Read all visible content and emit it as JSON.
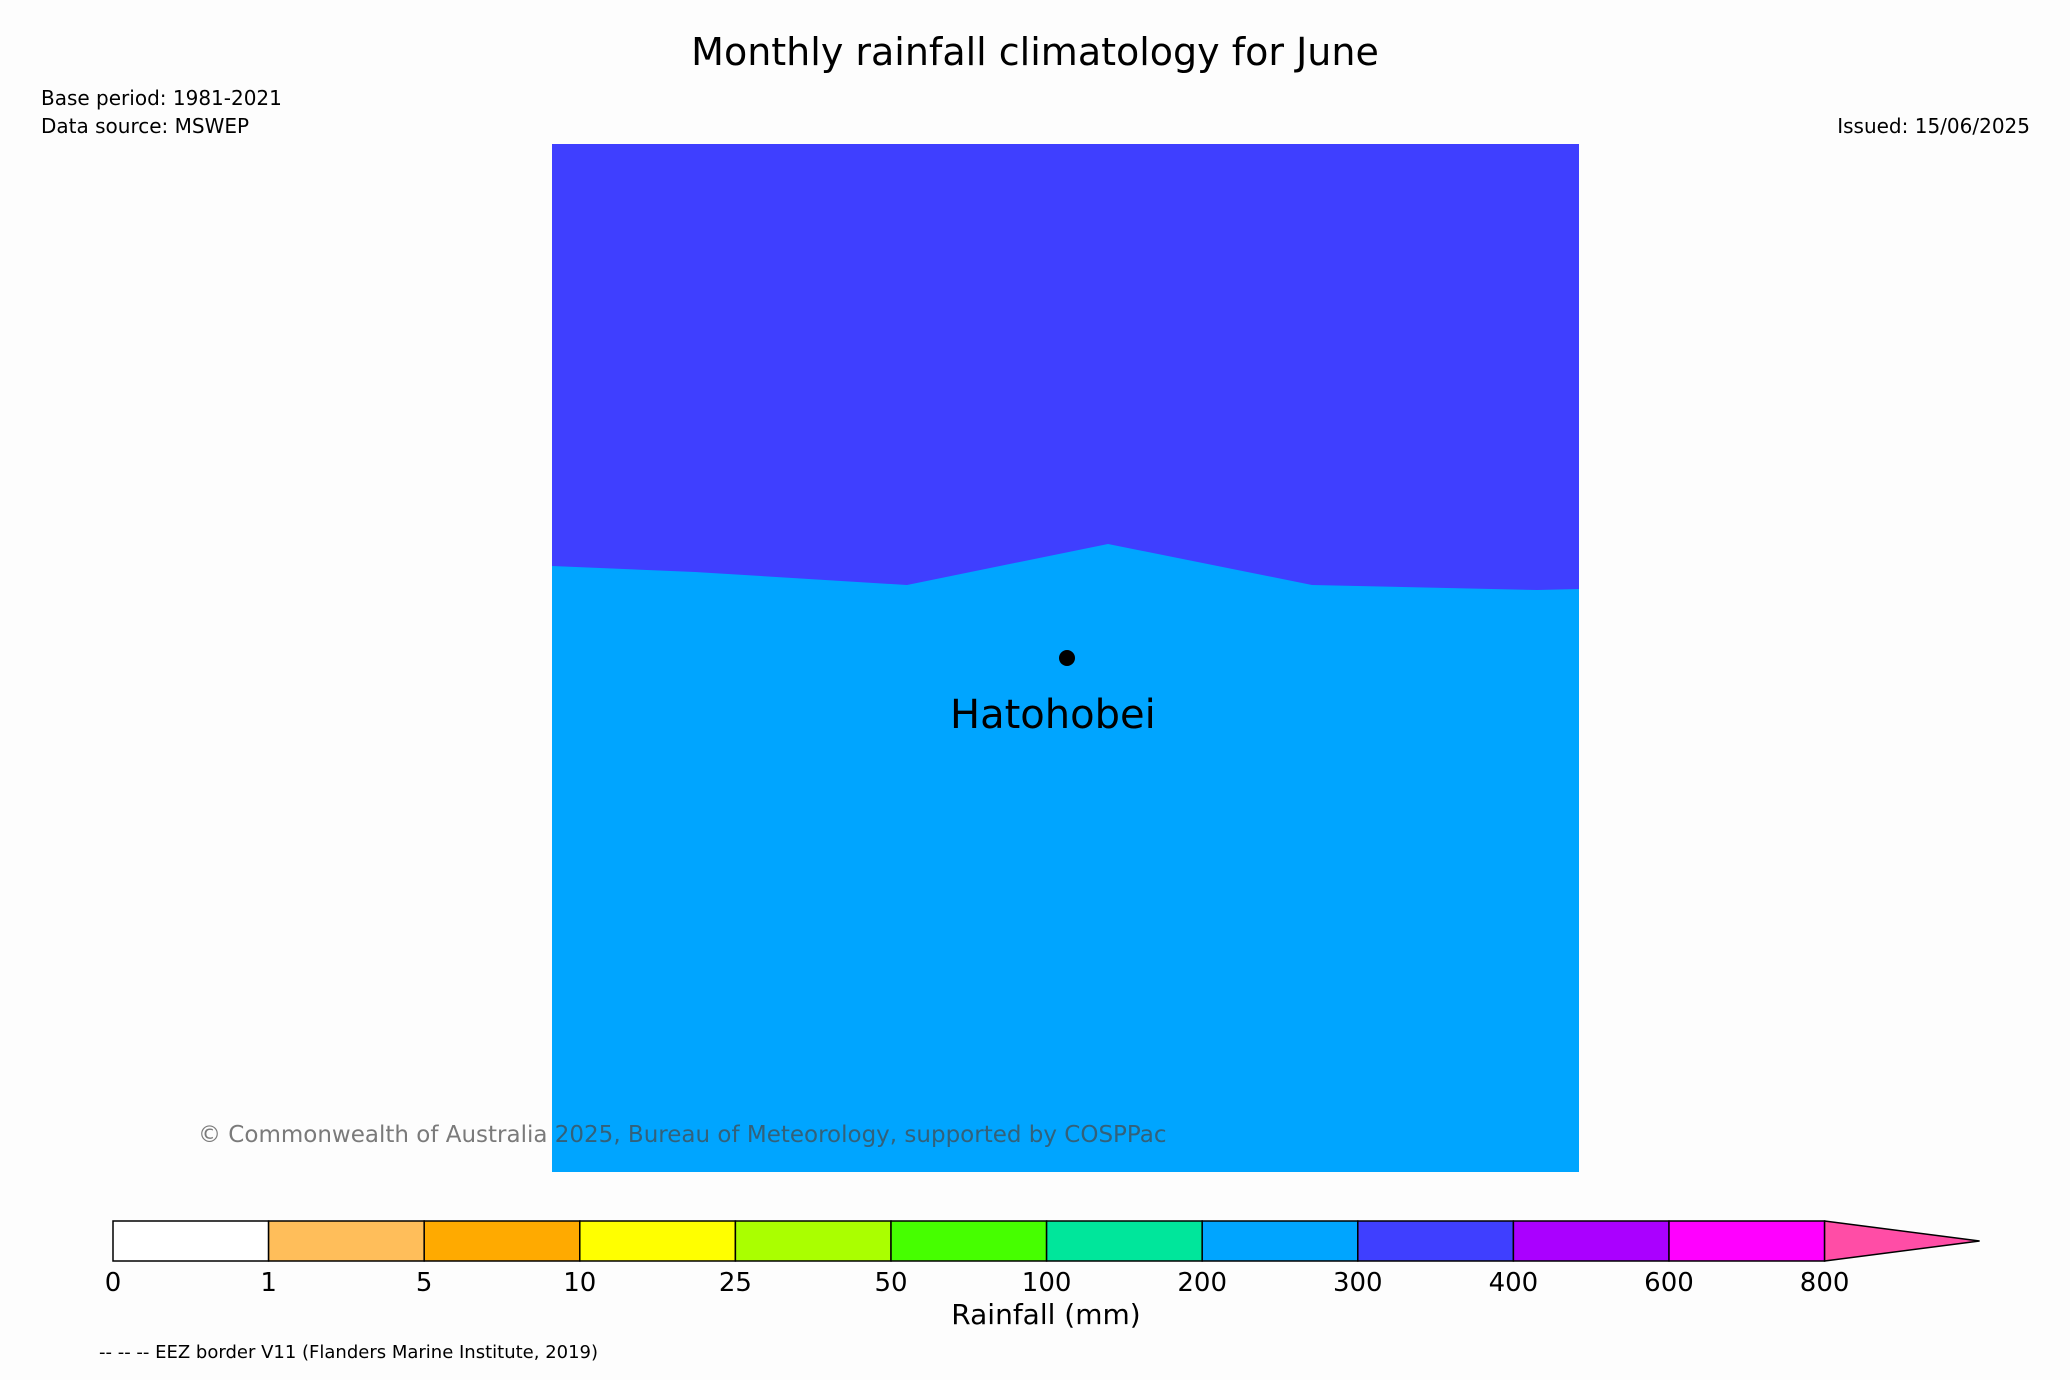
{
  "header": {
    "title": "Monthly rainfall climatology for June",
    "base_period": "Base period: 1981-2021",
    "data_source": "Data source: MSWEP",
    "issued": "Issued: 15/06/2025"
  },
  "map": {
    "location_label": "Hatohobei",
    "marker": "location-dot",
    "regions": [
      {
        "name": "north",
        "range": "300-400 mm",
        "color": "#3f3fff"
      },
      {
        "name": "south",
        "range": "200-300 mm",
        "color": "#00a5ff"
      }
    ]
  },
  "copyright": "© Commonwealth of Australia 2025, Bureau of Meteorology, supported by COSPPac",
  "colorbar": {
    "label": "Rainfall (mm)",
    "ticks": [
      "0",
      "1",
      "5",
      "10",
      "25",
      "50",
      "100",
      "200",
      "300",
      "400",
      "600",
      "800"
    ],
    "colors": [
      "#ffffff",
      "#ffbe5a",
      "#ffaa00",
      "#ffff00",
      "#aaff00",
      "#46ff00",
      "#00e69b",
      "#00a5ff",
      "#3f3fff",
      "#aa00ff",
      "#ff00ff"
    ],
    "extend_color": "#ff4da6"
  },
  "footnote": "-- -- -- EEZ border V11 (Flanders Marine Institute, 2019)"
}
